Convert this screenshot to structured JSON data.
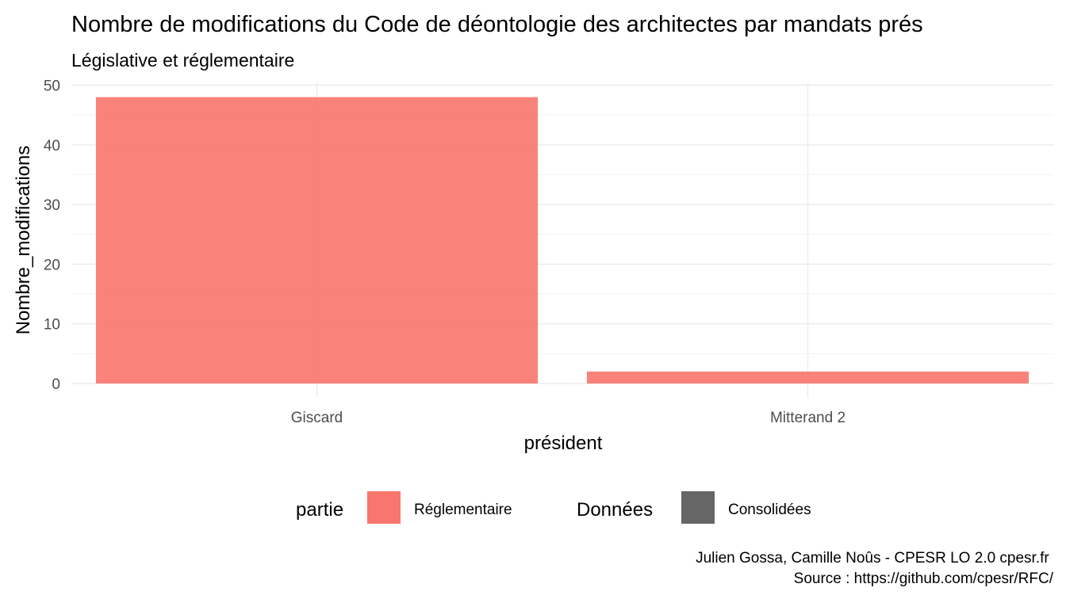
{
  "chart_data": {
    "type": "bar",
    "title": "Nombre de modifications du Code de déontologie des architectes par mandats prés",
    "subtitle": "Législative et réglementaire",
    "xlabel": "président",
    "ylabel": "Nombre_modifications",
    "categories": [
      "Giscard",
      "Mitterand 2"
    ],
    "series": [
      {
        "name": "Réglementaire",
        "values": [
          48,
          2
        ],
        "color": "#F8766D"
      }
    ],
    "ylim": [
      0,
      50
    ],
    "yticks": [
      0,
      10,
      20,
      30,
      40,
      50
    ],
    "grid": true,
    "legend_position": "bottom",
    "legend": [
      {
        "title": "partie",
        "entries": [
          {
            "label": "Réglementaire",
            "color": "#F8766D"
          }
        ]
      },
      {
        "title": "Données",
        "entries": [
          {
            "label": "Consolidées",
            "color": "#666666"
          }
        ]
      }
    ],
    "caption_lines": [
      "Julien Gossa, Camille Noûs - CPESR LO 2.0 cpesr.fr ",
      "Source : https://github.com/cpesr/RFC/"
    ]
  }
}
